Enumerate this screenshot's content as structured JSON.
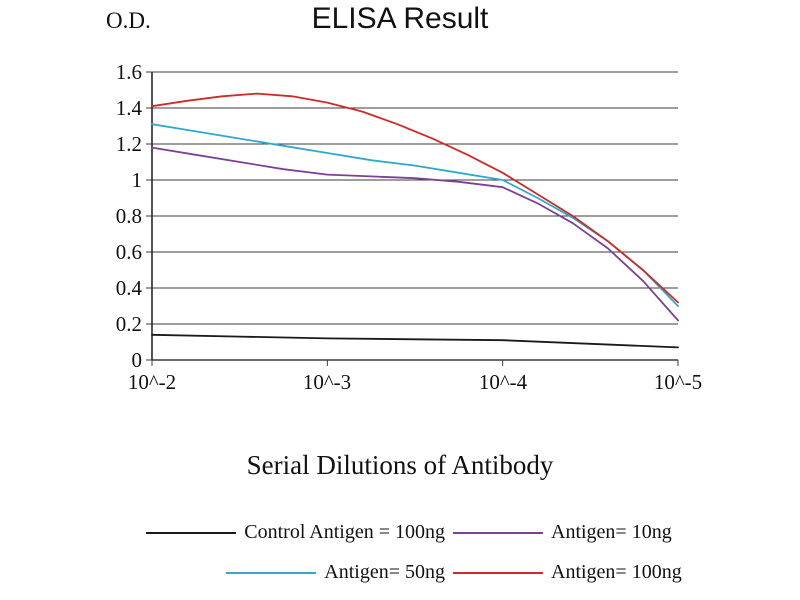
{
  "chart_data": {
    "type": "line",
    "title": "ELISA Result",
    "ylabel": "O.D.",
    "xlabel": "Serial Dilutions of Antibody",
    "categories": [
      "10^-2",
      "10^-3",
      "10^-4",
      "10^-5"
    ],
    "ytick_labels": [
      "1.6",
      "1.4",
      "1.2",
      "1",
      "0.8",
      "0.6",
      "0.4",
      "0.2",
      "0"
    ],
    "ylim": [
      0,
      1.6
    ],
    "grid": "horizontal",
    "legend_position": "bottom",
    "series": [
      {
        "name": "Control Antigen = 100ng",
        "color": "#1a1a1a",
        "values": [
          0.14,
          0.12,
          0.11,
          0.07
        ],
        "points": [
          [
            0,
            0.14
          ],
          [
            0.5,
            0.13
          ],
          [
            1,
            0.12
          ],
          [
            1.5,
            0.115
          ],
          [
            2,
            0.11
          ],
          [
            2.5,
            0.09
          ],
          [
            3,
            0.07
          ]
        ]
      },
      {
        "name": "Antigen= 10ng",
        "color": "#7e3f97",
        "values": [
          1.18,
          1.03,
          0.96,
          0.22
        ],
        "points": [
          [
            0,
            1.18
          ],
          [
            0.25,
            1.14
          ],
          [
            0.5,
            1.1
          ],
          [
            0.75,
            1.06
          ],
          [
            1,
            1.03
          ],
          [
            1.25,
            1.02
          ],
          [
            1.5,
            1.01
          ],
          [
            1.75,
            0.99
          ],
          [
            2,
            0.96
          ],
          [
            2.2,
            0.87
          ],
          [
            2.4,
            0.76
          ],
          [
            2.6,
            0.62
          ],
          [
            2.8,
            0.44
          ],
          [
            3,
            0.22
          ]
        ]
      },
      {
        "name": "Antigen= 50ng",
        "color": "#2fa8cc",
        "values": [
          1.31,
          1.15,
          1.0,
          0.3
        ],
        "points": [
          [
            0,
            1.31
          ],
          [
            0.25,
            1.27
          ],
          [
            0.5,
            1.23
          ],
          [
            0.75,
            1.19
          ],
          [
            1,
            1.15
          ],
          [
            1.25,
            1.11
          ],
          [
            1.5,
            1.08
          ],
          [
            1.75,
            1.04
          ],
          [
            2,
            1.0
          ],
          [
            2.2,
            0.9
          ],
          [
            2.4,
            0.79
          ],
          [
            2.6,
            0.66
          ],
          [
            2.8,
            0.5
          ],
          [
            3,
            0.3
          ]
        ]
      },
      {
        "name": "Antigen= 100ng",
        "color": "#cf2a27",
        "values": [
          1.41,
          1.43,
          1.04,
          0.32
        ],
        "points": [
          [
            0,
            1.41
          ],
          [
            0.2,
            1.44
          ],
          [
            0.4,
            1.465
          ],
          [
            0.6,
            1.48
          ],
          [
            0.8,
            1.465
          ],
          [
            1,
            1.43
          ],
          [
            1.2,
            1.38
          ],
          [
            1.4,
            1.31
          ],
          [
            1.6,
            1.23
          ],
          [
            1.8,
            1.14
          ],
          [
            2,
            1.04
          ],
          [
            2.2,
            0.92
          ],
          [
            2.4,
            0.8
          ],
          [
            2.6,
            0.66
          ],
          [
            2.8,
            0.5
          ],
          [
            3,
            0.32
          ]
        ]
      }
    ]
  }
}
